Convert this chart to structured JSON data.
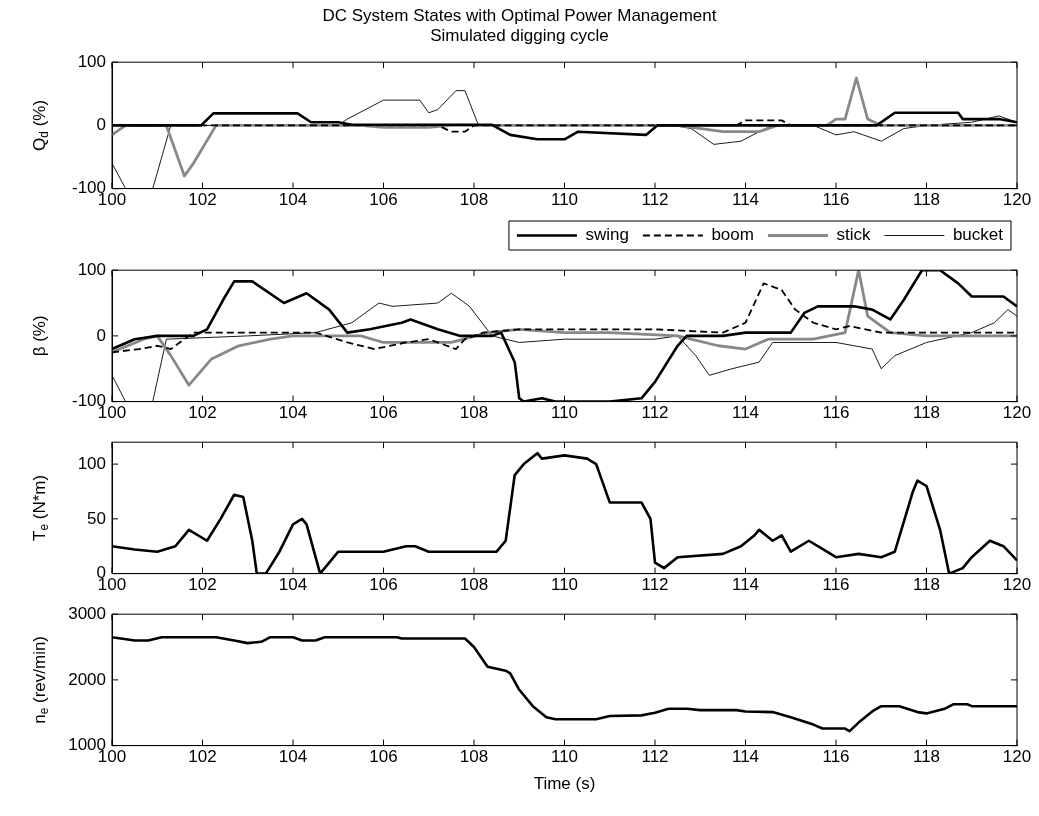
{
  "chart_data": [
    {
      "type": "line",
      "title": "DC System States with Optimal Power Management",
      "subtitle": "Simulated digging cycle",
      "ylabel": "Q$_{d}$ (%)",
      "xlim": [
        100,
        120
      ],
      "xticks": [
        100,
        102,
        104,
        106,
        108,
        110,
        112,
        114,
        116,
        118,
        120
      ],
      "ylim": [
        -100,
        100
      ],
      "yticks": [
        -100,
        0,
        100
      ],
      "grid": false,
      "legend": "bottom right",
      "series": [
        {
          "name": "swing",
          "color": "#000000",
          "line_style": "solid",
          "x": [
            100,
            101.97,
            102.24,
            104.1,
            104.4,
            105,
            105.3,
            108.4,
            108.8,
            109.4,
            110,
            110.3,
            111.8,
            112.05,
            116.9,
            117.3,
            118.7,
            118.8,
            119.6,
            120
          ],
          "values": [
            0,
            0,
            19,
            19,
            5,
            5,
            1,
            1,
            -15,
            -22,
            -22,
            -10,
            -15,
            0,
            0,
            20,
            20,
            10,
            10,
            5
          ]
        },
        {
          "name": "boom",
          "color": "#000000",
          "line_style": "dashed",
          "x": [
            100,
            107.2,
            107.5,
            107.8,
            108,
            113.8,
            114,
            114.8,
            115,
            120
          ],
          "values": [
            0,
            0,
            -10,
            -10,
            0,
            0,
            8,
            8,
            0,
            0
          ]
        },
        {
          "name": "stick",
          "color": "#888888",
          "line_style": "solid",
          "x": [
            100,
            100.3,
            101.2,
            101.6,
            101.8,
            102.3,
            105.5,
            106,
            107,
            107.5,
            112.5,
            113.5,
            114.3,
            114.7,
            115.8,
            116,
            116.2,
            116.45,
            116.7,
            117,
            120
          ],
          "values": [
            -15,
            0,
            0,
            -80,
            -60,
            0,
            0,
            -3,
            -3,
            0,
            0,
            -10,
            -10,
            0,
            0,
            10,
            10,
            75,
            10,
            0,
            0
          ]
        },
        {
          "name": "bucket",
          "color": "#000000",
          "line_style": "solid",
          "x": [
            100,
            100.3,
            100.9,
            101.3,
            105,
            105.2,
            106,
            106.8,
            107,
            107.2,
            107.6,
            107.8,
            108.1,
            112.4,
            112.8,
            113.3,
            113.9,
            114.3,
            114.6,
            115.5,
            116,
            116.4,
            116.8,
            117,
            117.5,
            118,
            119,
            119.6,
            120
          ],
          "values": [
            -60,
            -100,
            -100,
            0,
            0,
            10,
            40,
            40,
            20,
            25,
            55,
            55,
            0,
            0,
            -5,
            -30,
            -25,
            -10,
            0,
            0,
            -15,
            -10,
            -20,
            -25,
            -5,
            0,
            5,
            15,
            5
          ]
        }
      ]
    },
    {
      "type": "line",
      "ylabel": "β (%)",
      "xlim": [
        100,
        120
      ],
      "xticks": [
        100,
        102,
        104,
        106,
        108,
        110,
        112,
        114,
        116,
        118,
        120
      ],
      "ylim": [
        -100,
        100
      ],
      "yticks": [
        -100,
        0,
        100
      ],
      "grid": false,
      "series": [
        {
          "color": "#000000",
          "line_style": "solid",
          "x": [
            100,
            100.5,
            101,
            101.8,
            102.1,
            102.5,
            102.7,
            103.1,
            103.8,
            104.3,
            104.8,
            105.2,
            105.7,
            106.4,
            106.6,
            107.2,
            107.7,
            108.4,
            108.6,
            108.9,
            109,
            109.1,
            109.5,
            109.8,
            111,
            111.7,
            112,
            112.5,
            112.7,
            113.5,
            114,
            115,
            115.3,
            115.6,
            116.4,
            116.8,
            117.2,
            117.5,
            117.9,
            118.3,
            118.7,
            119,
            119.7,
            120
          ],
          "values": [
            -20,
            -5,
            0,
            0,
            10,
            60,
            83,
            83,
            50,
            65,
            40,
            5,
            10,
            20,
            25,
            10,
            0,
            0,
            5,
            -40,
            -95,
            -100,
            -95,
            -100,
            -100,
            -95,
            -70,
            -15,
            0,
            0,
            5,
            5,
            35,
            45,
            45,
            40,
            25,
            55,
            100,
            100,
            80,
            60,
            60,
            45
          ]
        },
        {
          "color": "#000000",
          "line_style": "dashed",
          "x": [
            100,
            100.6,
            101,
            101.3,
            101.8,
            104.5,
            105.2,
            105.8,
            106.5,
            107,
            107.6,
            107.8,
            108.2,
            109,
            112,
            113.5,
            114,
            114.4,
            114.8,
            115.1,
            115.5,
            116,
            116.3,
            117,
            120
          ],
          "values": [
            -25,
            -20,
            -15,
            -20,
            5,
            5,
            -10,
            -20,
            -10,
            -5,
            -20,
            -5,
            5,
            10,
            10,
            5,
            20,
            80,
            70,
            40,
            20,
            10,
            15,
            5,
            5
          ]
        },
        {
          "color": "#888888",
          "line_style": "solid",
          "x": [
            100,
            100.7,
            101,
            101.3,
            101.7,
            102.2,
            102.8,
            103.5,
            104,
            105.5,
            106,
            107.5,
            108.3,
            109,
            110,
            111,
            112.5,
            113.4,
            114,
            114.5,
            115.5,
            116.2,
            116.5,
            116.7,
            117.2,
            118,
            120
          ],
          "values": [
            -25,
            -5,
            0,
            -30,
            -75,
            -35,
            -15,
            -5,
            0,
            0,
            -10,
            -10,
            5,
            10,
            5,
            5,
            0,
            -15,
            -20,
            -5,
            -5,
            5,
            100,
            30,
            5,
            0,
            0
          ]
        },
        {
          "color": "#000000",
          "line_style": "solid",
          "x": [
            100,
            100.3,
            100.9,
            101.2,
            103,
            104.5,
            105.3,
            105.9,
            106.2,
            107.2,
            107.5,
            107.9,
            108.4,
            109,
            110,
            112,
            112.5,
            112.9,
            113.2,
            113.7,
            114.3,
            114.6,
            116,
            116.8,
            117,
            117.3,
            118,
            119,
            119.5,
            119.8,
            120
          ],
          "values": [
            -60,
            -100,
            -100,
            -5,
            0,
            5,
            20,
            50,
            45,
            50,
            65,
            45,
            0,
            -10,
            -5,
            -5,
            0,
            -30,
            -60,
            -50,
            -40,
            -10,
            -10,
            -20,
            -50,
            -30,
            -10,
            5,
            20,
            40,
            30
          ]
        }
      ]
    },
    {
      "type": "line",
      "ylabel": "T$_{e}$ (N*m)",
      "xlim": [
        100,
        120
      ],
      "xticks": [
        100,
        102,
        104,
        106,
        108,
        110,
        112,
        114,
        116,
        118,
        120
      ],
      "ylim": [
        0,
        120
      ],
      "yticks": [
        0,
        50,
        100
      ],
      "grid": false,
      "series": [
        {
          "color": "#000000",
          "line_style": "solid",
          "x": [
            100,
            100.5,
            101,
            101.4,
            101.7,
            102.1,
            102.4,
            102.7,
            102.9,
            103.1,
            103.2,
            103.4,
            103.7,
            104,
            104.2,
            104.3,
            104.6,
            105,
            106,
            106.5,
            106.7,
            107,
            108.5,
            108.7,
            108.9,
            109.1,
            109.4,
            109.5,
            110,
            110.5,
            110.7,
            111,
            111.7,
            111.9,
            112,
            112.2,
            112.5,
            113.5,
            113.9,
            114.2,
            114.3,
            114.6,
            114.8,
            115,
            115.4,
            115.8,
            116,
            116.5,
            117,
            117.3,
            117.7,
            117.8,
            118,
            118.3,
            118.5,
            118.8,
            119,
            119.4,
            119.7,
            120
          ],
          "values": [
            25,
            22,
            20,
            25,
            40,
            30,
            50,
            72,
            70,
            30,
            0,
            0,
            20,
            45,
            50,
            45,
            0,
            20,
            20,
            25,
            25,
            20,
            20,
            30,
            90,
            100,
            110,
            105,
            108,
            105,
            100,
            65,
            65,
            50,
            10,
            5,
            15,
            18,
            25,
            35,
            40,
            30,
            35,
            20,
            30,
            20,
            15,
            18,
            15,
            20,
            75,
            85,
            80,
            40,
            0,
            5,
            15,
            30,
            25,
            12
          ]
        }
      ]
    },
    {
      "type": "line",
      "ylabel": "n$_{e}$ (rev/min)",
      "xlabel": "Time (s)",
      "xlim": [
        100,
        120
      ],
      "xticks": [
        100,
        102,
        104,
        106,
        108,
        110,
        112,
        114,
        116,
        118,
        120
      ],
      "ylim": [
        1000,
        3000
      ],
      "yticks": [
        1000,
        2000,
        3000
      ],
      "grid": false,
      "series": [
        {
          "color": "#000000",
          "line_style": "solid",
          "x": [
            100,
            100.5,
            100.8,
            101.1,
            102.3,
            102.7,
            103,
            103.3,
            103.5,
            104,
            104.2,
            104.5,
            104.7,
            106.3,
            106.4,
            107.8,
            108,
            108.3,
            108.7,
            108.8,
            109,
            109.3,
            109.6,
            109.8,
            110.7,
            111,
            111.7,
            112,
            112.3,
            112.7,
            113,
            113.8,
            114,
            114.6,
            115,
            115.5,
            115.7,
            116.2,
            116.3,
            116.5,
            116.8,
            117,
            117.4,
            117.8,
            118,
            118.4,
            118.6,
            118.9,
            119,
            120
          ],
          "values": [
            2650,
            2600,
            2600,
            2650,
            2650,
            2600,
            2560,
            2580,
            2650,
            2650,
            2600,
            2600,
            2650,
            2650,
            2630,
            2630,
            2500,
            2200,
            2140,
            2100,
            1850,
            1600,
            1430,
            1400,
            1400,
            1450,
            1460,
            1500,
            1560,
            1560,
            1540,
            1540,
            1520,
            1510,
            1430,
            1320,
            1260,
            1260,
            1220,
            1350,
            1520,
            1600,
            1600,
            1510,
            1490,
            1560,
            1630,
            1630,
            1600,
            1600
          ]
        }
      ]
    }
  ]
}
